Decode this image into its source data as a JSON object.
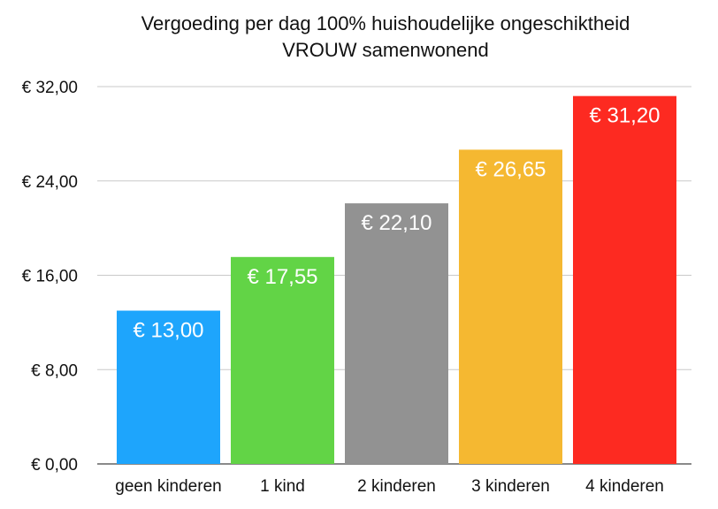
{
  "chart_data": {
    "type": "bar",
    "title_lines": [
      "Vergoeding per dag 100% huishoudelijke ongeschiktheid",
      "VROUW samenwonend"
    ],
    "categories": [
      "geen kinderen",
      "1 kind",
      "2 kinderen",
      "3 kinderen",
      "4 kinderen"
    ],
    "values": [
      13.0,
      17.55,
      22.1,
      26.65,
      31.2
    ],
    "data_labels": [
      "€ 13,00",
      "€ 17,55",
      "€ 22,10",
      "€ 26,65",
      "€ 31,20"
    ],
    "bar_colors": [
      "#1ea5fc",
      "#62d446",
      "#929292",
      "#f5b831",
      "#fd2a21"
    ],
    "ylim": [
      0,
      32
    ],
    "y_ticks": [
      0,
      8,
      16,
      24,
      32
    ],
    "y_tick_labels": [
      "€ 0,00",
      "€ 8,00",
      "€ 16,00",
      "€ 24,00",
      "€ 32,00"
    ],
    "grid": true,
    "legend": "none"
  }
}
